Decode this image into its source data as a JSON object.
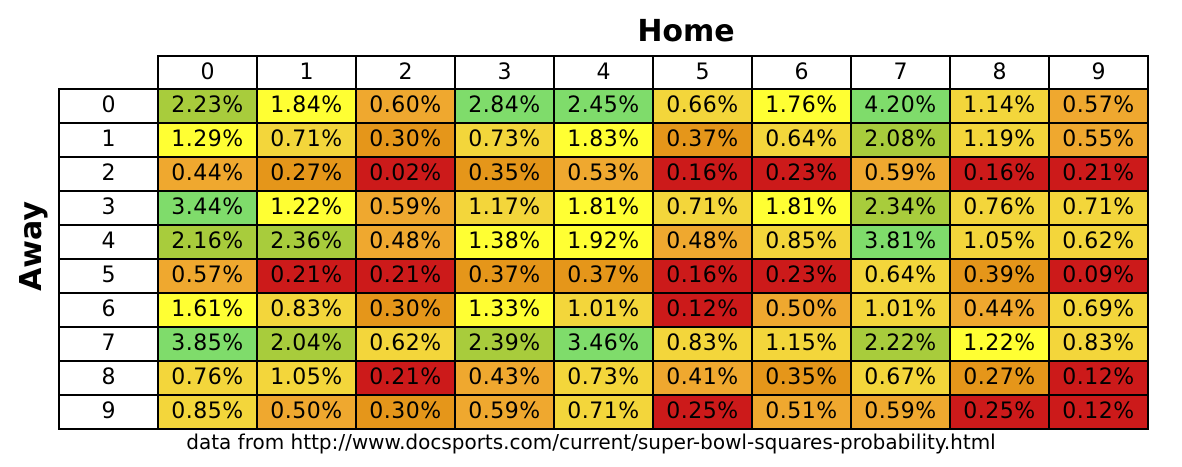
{
  "chart_data": {
    "type": "heatmap",
    "title": "Home",
    "xlabel": "Home",
    "ylabel": "Away",
    "x_categories": [
      "0",
      "1",
      "2",
      "3",
      "4",
      "5",
      "6",
      "7",
      "8",
      "9"
    ],
    "y_categories": [
      "0",
      "1",
      "2",
      "3",
      "4",
      "5",
      "6",
      "7",
      "8",
      "9"
    ],
    "value_format": "percent",
    "values": [
      [
        2.23,
        1.84,
        0.6,
        2.84,
        2.45,
        0.66,
        1.76,
        4.2,
        1.14,
        0.57
      ],
      [
        1.29,
        0.71,
        0.3,
        0.73,
        1.83,
        0.37,
        0.64,
        2.08,
        1.19,
        0.55
      ],
      [
        0.44,
        0.27,
        0.02,
        0.35,
        0.53,
        0.16,
        0.23,
        0.59,
        0.16,
        0.21
      ],
      [
        3.44,
        1.22,
        0.59,
        1.17,
        1.81,
        0.71,
        1.81,
        2.34,
        0.76,
        0.71
      ],
      [
        2.16,
        2.36,
        0.48,
        1.38,
        1.92,
        0.48,
        0.85,
        3.81,
        1.05,
        0.62
      ],
      [
        0.57,
        0.21,
        0.21,
        0.37,
        0.37,
        0.16,
        0.23,
        0.64,
        0.39,
        0.09
      ],
      [
        1.61,
        0.83,
        0.3,
        1.33,
        1.01,
        0.12,
        0.5,
        1.01,
        0.44,
        0.69
      ],
      [
        3.85,
        2.04,
        0.62,
        2.39,
        3.46,
        0.83,
        1.15,
        2.22,
        1.22,
        0.83
      ],
      [
        0.76,
        1.05,
        0.21,
        0.43,
        0.73,
        0.41,
        0.35,
        0.67,
        0.27,
        0.12
      ],
      [
        0.85,
        0.5,
        0.3,
        0.59,
        0.71,
        0.25,
        0.51,
        0.59,
        0.25,
        0.12
      ]
    ],
    "color_scale": [
      {
        "max": 0.26,
        "color": "#cc1a1a"
      },
      {
        "max": 0.4,
        "color": "#e5961a"
      },
      {
        "max": 0.6,
        "color": "#efa82f"
      },
      {
        "max": 1.2,
        "color": "#f3d63b"
      },
      {
        "max": 2.0,
        "color": "#ffff33"
      },
      {
        "max": 2.4,
        "color": "#a8cc3c"
      },
      {
        "max": 99,
        "color": "#7fdc6b"
      }
    ],
    "source_note": "data from http://www.docsports.com/current/super-bowl-squares-probability.html"
  }
}
